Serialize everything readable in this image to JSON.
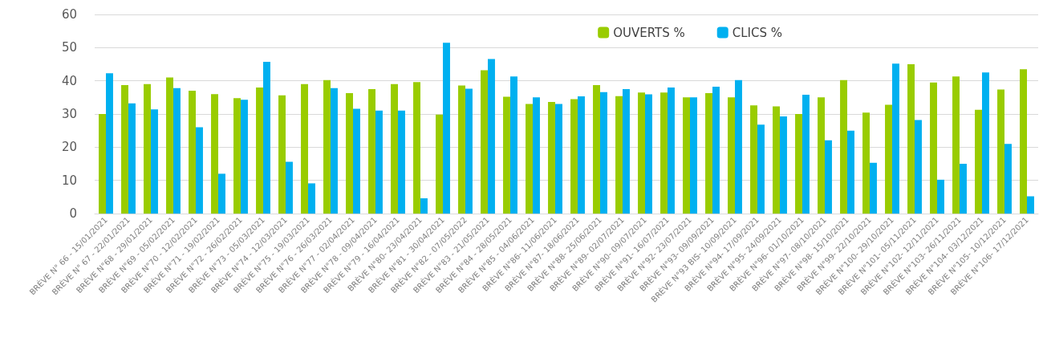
{
  "chart_data": {
    "type": "bar",
    "categories": [
      "BRÈVE N° 66 - 15/01/2021",
      "BRÈVE N° 67 - 22/01/2021",
      "BRÈVE N°68 - 29/01/2021",
      "BRÈVE N°69 - 05/02/2021",
      "BRÈVE N°70 - 12/02/2021",
      "BRÈVE N°71 - 19/02/2021",
      "BRÈVE N°72 - 26/02/2021",
      "BRÈVE N°73 - 05/03/2021",
      "BRÈVE N°74 - 12/03/2021",
      "BRÈVE N°75 - 19/03/2021",
      "BRÈVE N°76 - 26/03/2021",
      "BRÈVE N°77 - 02/04/2021",
      "BRÈVE N°78 - 09/04/2021",
      "BRÈVE N°79 - 16/04/2021",
      "BRÈVE N°80- 23/04/2021",
      "BRÈVE N°81 - 30/04/2021",
      "BRÈVE N°82 - 07/05/2022",
      "BRÈVE N°83 - 21/05/2021",
      "BRÈVE N°84 - 28/05/2021",
      "BRÈVE N°85 - 04/06/2021",
      "BRÈVE N°86- 11/06/2021",
      "BRÈVE N°87- 18/06/2021",
      "BRÈVE N°88- 25/06/2021",
      "BRÈVE N°89- 02/07/2021",
      "BRÈVE N°90- 09/07/2021",
      "BRÈVE N°91- 16/07/2021",
      "BRÈVE N°92- 23/07/2021",
      "BRÈVE N°93- 09/09/2021",
      "BRÈVE N°93 BIS- 10/09/2021",
      "BRÈVE N°94- 17/09/2021",
      "BRÈVE N°95- 24/09/2021",
      "BRÈVE N°96- 01/10/2021",
      "BRÈVE N°97- 08/10/2021",
      "BRÈVE N°98- 15/10/2021",
      "BRÈVE N°99- 22/10/2021",
      "BRÈVE N°100- 29/10/2021",
      "BRÈVE N°101- 05/11/2021",
      "BRÈVE N°102- 12/11/2021",
      "BRÈVE N°103- 26/11/2021",
      "BRÈVE N°104- 03/12/2021",
      "BRÈVE N°105- 10/12/2021",
      "BRÈVE N°106- 17/12/2021"
    ],
    "series": [
      {
        "name": "OUVERTS %",
        "color": "#99cc00",
        "values": [
          30,
          38.7,
          39,
          41,
          37,
          36,
          34.8,
          38,
          35.6,
          39,
          40.2,
          36.3,
          37.5,
          39,
          39.6,
          29.8,
          38.6,
          43.2,
          35.2,
          33,
          33.6,
          34.5,
          38.7,
          35.4,
          36.5,
          36.5,
          35,
          36.3,
          35,
          32.6,
          32.3,
          30,
          35,
          40.2,
          30.4,
          32.8,
          45,
          39.5,
          41.3,
          31.3,
          37.4,
          43.5
        ]
      },
      {
        "name": "CLICS %",
        "color": "#00b0f0",
        "values": [
          42.3,
          33.2,
          31.4,
          37.8,
          26,
          12,
          34.3,
          45.7,
          15.6,
          9.1,
          37.8,
          31.6,
          31,
          31,
          4.6,
          51.5,
          37.6,
          46.6,
          41.3,
          35,
          33,
          35.3,
          36.6,
          37.5,
          35.9,
          38,
          35,
          38.2,
          40.2,
          26.8,
          29.3,
          35.8,
          22.1,
          25,
          15.3,
          45.2,
          28.2,
          10.2,
          15,
          42.5,
          21,
          5.2
        ]
      }
    ],
    "ylim": [
      0,
      60
    ],
    "yticks": [
      0,
      10,
      20,
      30,
      40,
      50,
      60
    ],
    "grid": "y",
    "legend": "top right"
  }
}
